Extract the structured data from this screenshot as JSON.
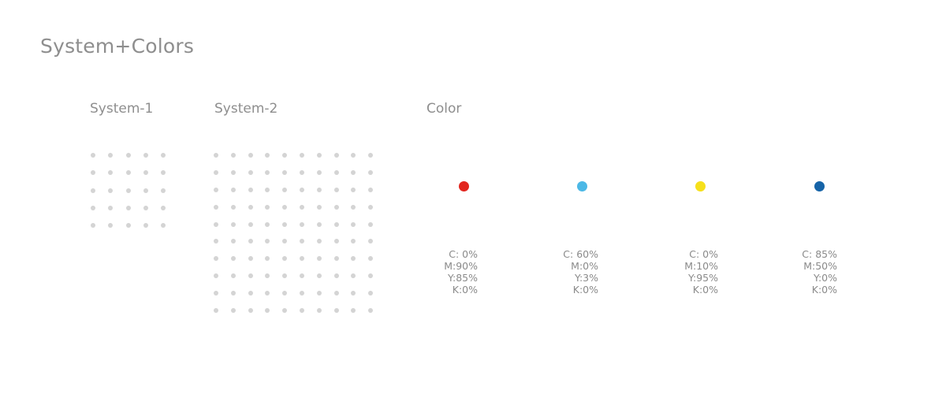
{
  "page": {
    "title": "System+Colors"
  },
  "system1": {
    "title": "System-1",
    "rows": 5,
    "cols": 5
  },
  "system2": {
    "title": "System-2",
    "rows": 10,
    "cols": 10
  },
  "color_section": {
    "title": "Color",
    "swatches": [
      {
        "hex": "#e2261f",
        "icon": "red-dot",
        "c": "C: 0%",
        "m": "M:90%",
        "y": "Y:85%",
        "k": "K:0%"
      },
      {
        "hex": "#4cb8e6",
        "icon": "cyan-dot",
        "c": "C: 60%",
        "m": "M:0%",
        "y": "Y:3%",
        "k": "K:0%"
      },
      {
        "hex": "#f6e01b",
        "icon": "yellow-dot",
        "c": "C: 0%",
        "m": "M:10%",
        "y": "Y:95%",
        "k": "K:0%"
      },
      {
        "hex": "#1664a8",
        "icon": "blue-dot",
        "c": "C: 85%",
        "m": "M:50%",
        "y": "Y:0%",
        "k": "K:0%"
      }
    ]
  },
  "colors": {
    "grid_dot": "#d4d4d4",
    "text": "#8a8a8a"
  }
}
